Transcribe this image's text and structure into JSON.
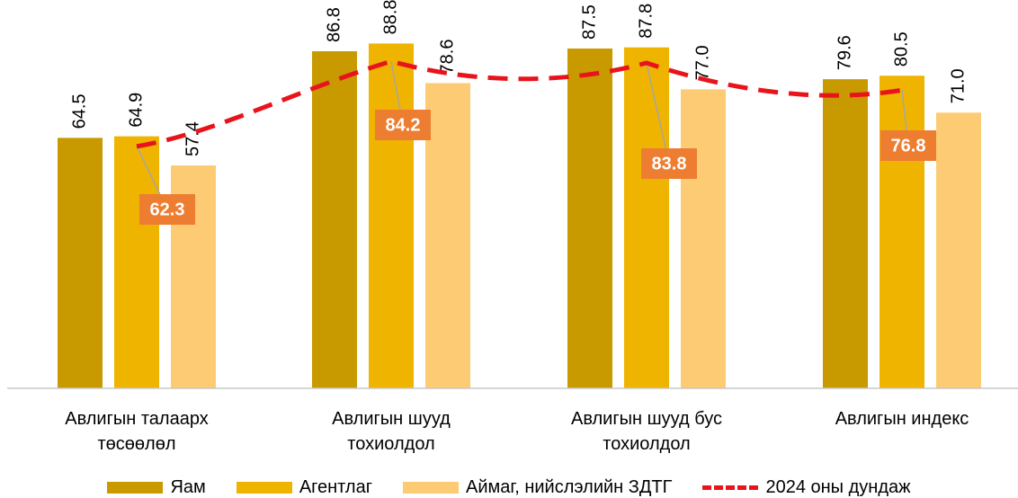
{
  "chart_data": {
    "type": "bar",
    "categories": [
      [
        "Авлигын талаарх",
        "төсөөлөл"
      ],
      [
        "Авлигын шууд",
        "тохиолдол"
      ],
      [
        "Авлигын шууд бус",
        "тохиолдол"
      ],
      [
        "Авлигын индекс"
      ]
    ],
    "series": [
      {
        "name": "Яам",
        "values": [
          64.5,
          86.8,
          87.5,
          79.6
        ],
        "labels": [
          "64.5",
          "86.8",
          "87.5",
          "79.6"
        ],
        "color": "#c89a00"
      },
      {
        "name": "Агентлаг",
        "values": [
          64.9,
          88.8,
          87.8,
          80.5
        ],
        "labels": [
          "64.9",
          "88.8",
          "87.8",
          "80.5"
        ],
        "color": "#efb400"
      },
      {
        "name": "Аймаг, нийслэлийн ЗДТГ",
        "values": [
          57.4,
          78.6,
          77.0,
          71.0
        ],
        "labels": [
          "57.4",
          "78.6",
          "77.0",
          "71.0"
        ],
        "color": "#fdcb73"
      }
    ],
    "line_series": {
      "name": "2024 оны дундаж",
      "values": [
        62.3,
        84.2,
        83.8,
        76.8
      ],
      "labels": [
        "62.3",
        "84.2",
        "83.8",
        "76.8"
      ],
      "color": "#e8141c",
      "label_bg": "#ed7d31"
    },
    "ylim": [
      0,
      100
    ],
    "grid": false,
    "legend_position": "bottom"
  }
}
